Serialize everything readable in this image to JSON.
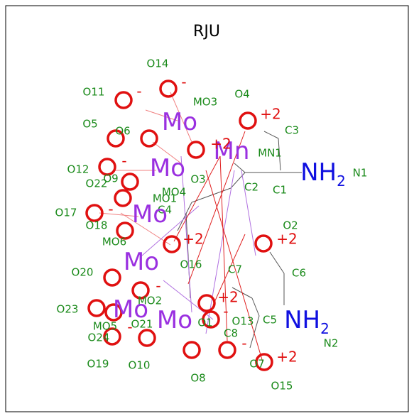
{
  "title": "RJU",
  "atom_names": [
    "O14",
    "O11",
    "MO3",
    "O4",
    "O5",
    "O6",
    "C3",
    "MN1",
    "O12",
    "O22",
    "O9",
    "MO4",
    "MO1",
    "C4",
    "O3",
    "C2",
    "C1",
    "N1",
    "O17",
    "O18",
    "MO6",
    "O2",
    "O20",
    "O16",
    "C7",
    "C6",
    "MO2",
    "O23",
    "MO5",
    "O21",
    "O1",
    "O13",
    "C5",
    "C8",
    "O24",
    "N2",
    "O19",
    "O10",
    "O8",
    "O7",
    "O15"
  ],
  "elements": [
    {
      "symbol": "Mo"
    },
    {
      "symbol": "Mo"
    },
    {
      "symbol": "Mo"
    },
    {
      "symbol": "Mo"
    },
    {
      "symbol": "Mo"
    },
    {
      "symbol": "Mo"
    },
    {
      "symbol": "Mn"
    },
    {
      "symbol": "NH",
      "sub": "2"
    },
    {
      "symbol": "NH",
      "sub": "2"
    }
  ],
  "charges": [
    "-",
    "-",
    "+2",
    "+2",
    "-",
    "-",
    "+2",
    "+2",
    "-",
    "+2",
    "-",
    "-",
    "-",
    "+2"
  ]
}
